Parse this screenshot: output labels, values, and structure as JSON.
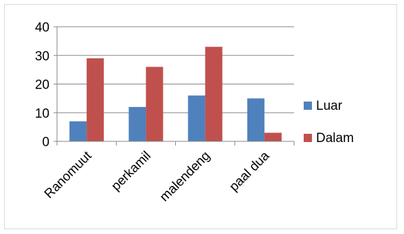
{
  "chart_data": {
    "type": "bar",
    "categories": [
      "Ranomuut",
      "perkamil",
      "malendeng",
      "paal dua"
    ],
    "series": [
      {
        "name": "Luar",
        "values": [
          7,
          12,
          16,
          15
        ],
        "color": "#4F81BD"
      },
      {
        "name": "Dalam",
        "values": [
          29,
          26,
          33,
          3
        ],
        "color": "#C0504D"
      }
    ],
    "ylim": [
      0,
      40
    ],
    "yticks": [
      0,
      10,
      20,
      30,
      40
    ],
    "grid": true,
    "legend": "right"
  }
}
